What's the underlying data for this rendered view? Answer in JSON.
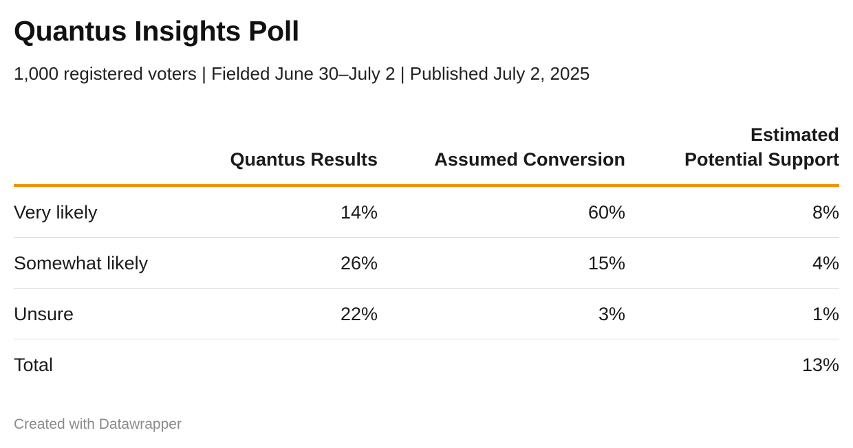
{
  "title": "Quantus Insights Poll",
  "subtitle": "1,000 registered voters | Fielded June 30–July 2 | Published July 2, 2025",
  "footer": "Created with Datawrapper",
  "colors": {
    "header_rule": "#f39200",
    "row_divider": "#dddddd",
    "footer_text": "#8a8a8a"
  },
  "chart_data": {
    "type": "table",
    "columns": [
      {
        "label_lines": [
          ""
        ]
      },
      {
        "label_lines": [
          "Quantus Results"
        ]
      },
      {
        "label_lines": [
          "Assumed Conversion"
        ]
      },
      {
        "label_lines": [
          "Estimated",
          "Potential Support"
        ]
      }
    ],
    "rows": [
      {
        "label": "Very likely",
        "values": [
          "14%",
          "60%",
          "8%"
        ]
      },
      {
        "label": "Somewhat likely",
        "values": [
          "26%",
          "15%",
          "4%"
        ]
      },
      {
        "label": "Unsure",
        "values": [
          "22%",
          "3%",
          "1%"
        ]
      },
      {
        "label": "Total",
        "values": [
          "",
          "",
          "13%"
        ]
      }
    ]
  }
}
